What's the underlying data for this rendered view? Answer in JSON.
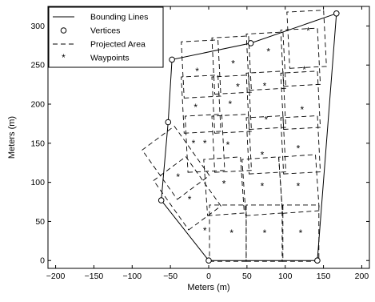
{
  "chart_data": {
    "type": "line",
    "xlabel": "Meters (m)",
    "ylabel": "Meters (m)",
    "xlim": [
      -210,
      210
    ],
    "ylim": [
      -10,
      325
    ],
    "xticks": [
      -200,
      -150,
      -100,
      -50,
      0,
      50,
      100,
      150,
      200
    ],
    "yticks": [
      0,
      50,
      100,
      150,
      200,
      250,
      300
    ],
    "grid": false,
    "legend": {
      "placement": "top-left",
      "entries": [
        {
          "label": "Bounding Lines",
          "style": "solid-line"
        },
        {
          "label": "Vertices",
          "style": "circle-marker"
        },
        {
          "label": "Projected Area",
          "style": "dashed-line"
        },
        {
          "label": "Waypoints",
          "style": "asterisk-marker"
        }
      ]
    },
    "bounding_polygon": [
      [
        0,
        0
      ],
      [
        142,
        0
      ],
      [
        167,
        316
      ],
      [
        55,
        278
      ],
      [
        -48,
        257
      ],
      [
        -53,
        177
      ],
      [
        -62,
        77
      ],
      [
        0,
        0
      ]
    ],
    "vertices": [
      [
        0,
        0
      ],
      [
        142,
        0
      ],
      [
        167,
        316
      ],
      [
        55,
        278
      ],
      [
        -48,
        257
      ],
      [
        -53,
        177
      ],
      [
        -62,
        77
      ]
    ],
    "projected_areas": [
      {
        "cx": -28,
        "cy": 86,
        "w": 52,
        "h": 78,
        "angle": 36
      },
      {
        "cx": -43,
        "cy": 125,
        "w": 52,
        "h": 78,
        "angle": 36
      },
      {
        "cx": 25,
        "cy": 35,
        "w": 48,
        "h": 72,
        "angle": 0
      },
      {
        "cx": 73,
        "cy": 35,
        "w": 48,
        "h": 72,
        "angle": 0
      },
      {
        "cx": 120,
        "cy": 35,
        "w": 48,
        "h": 72,
        "angle": 0
      },
      {
        "cx": 20,
        "cy": 95,
        "w": 48,
        "h": 72,
        "angle": 4
      },
      {
        "cx": 70,
        "cy": 95,
        "w": 48,
        "h": 72,
        "angle": 4
      },
      {
        "cx": 118,
        "cy": 98,
        "w": 48,
        "h": 72,
        "angle": 4
      },
      {
        "cx": -5,
        "cy": 150,
        "w": 48,
        "h": 72,
        "angle": 3
      },
      {
        "cx": 30,
        "cy": 150,
        "w": 48,
        "h": 72,
        "angle": 3
      },
      {
        "cx": 75,
        "cy": 148,
        "w": 48,
        "h": 72,
        "angle": 3
      },
      {
        "cx": 120,
        "cy": 148,
        "w": 48,
        "h": 72,
        "angle": 3
      },
      {
        "cx": -10,
        "cy": 200,
        "w": 48,
        "h": 72,
        "angle": 3
      },
      {
        "cx": 30,
        "cy": 200,
        "w": 48,
        "h": 72,
        "angle": 3
      },
      {
        "cx": 75,
        "cy": 205,
        "w": 48,
        "h": 72,
        "angle": 3
      },
      {
        "cx": 120,
        "cy": 205,
        "w": 48,
        "h": 72,
        "angle": 3
      },
      {
        "cx": -10,
        "cy": 245,
        "w": 48,
        "h": 72,
        "angle": 3
      },
      {
        "cx": 30,
        "cy": 250,
        "w": 48,
        "h": 72,
        "angle": 3
      },
      {
        "cx": 75,
        "cy": 255,
        "w": 48,
        "h": 72,
        "angle": 3
      },
      {
        "cx": 120,
        "cy": 260,
        "w": 48,
        "h": 72,
        "angle": 3
      },
      {
        "cx": 128,
        "cy": 283,
        "w": 48,
        "h": 72,
        "angle": 3
      }
    ],
    "waypoints": [
      [
        -25,
        78
      ],
      [
        -40,
        107
      ],
      [
        -20,
        150
      ],
      [
        -5,
        38
      ],
      [
        30,
        35
      ],
      [
        73,
        35
      ],
      [
        120,
        35
      ],
      [
        20,
        98
      ],
      [
        70,
        95
      ],
      [
        117,
        95
      ],
      [
        -5,
        150
      ],
      [
        25,
        148
      ],
      [
        70,
        135
      ],
      [
        117,
        143
      ],
      [
        -17,
        196
      ],
      [
        28,
        200
      ],
      [
        75,
        180
      ],
      [
        122,
        193
      ],
      [
        -15,
        242
      ],
      [
        32,
        252
      ],
      [
        73,
        223
      ],
      [
        125,
        244
      ],
      [
        38,
        222
      ],
      [
        78,
        267
      ],
      [
        130,
        294
      ]
    ]
  }
}
